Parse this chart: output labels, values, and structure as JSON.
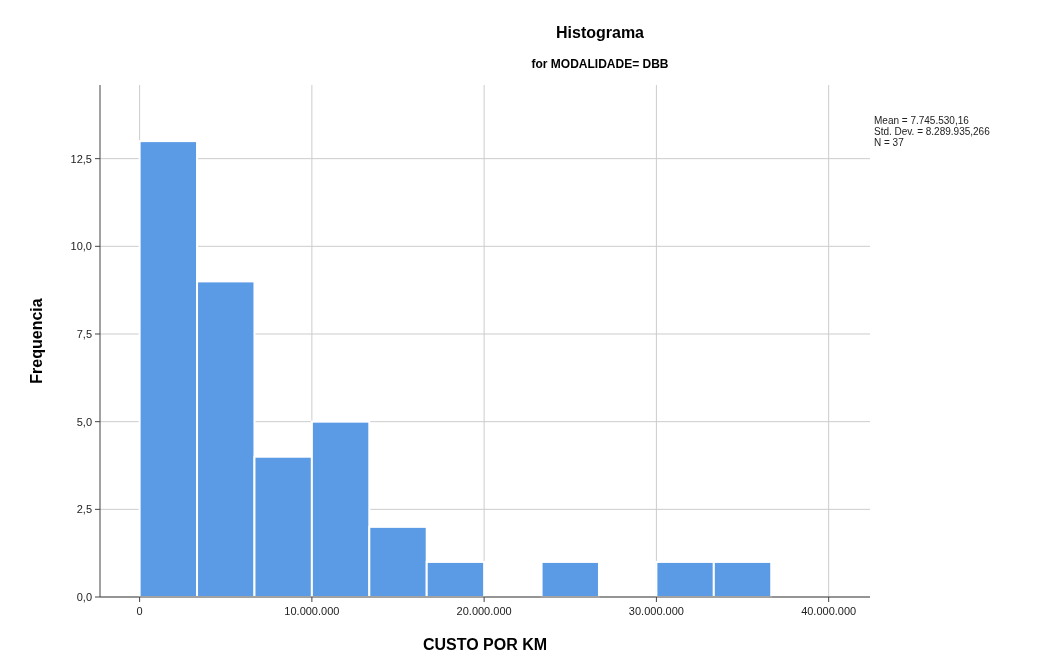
{
  "chart_data": {
    "type": "histogram",
    "title": "Histograma",
    "subtitle": "for MODALIDADE= DBB",
    "xlabel": "CUSTO POR KM",
    "ylabel": "Frequencia",
    "bins": [
      0,
      3333333,
      6666667,
      10000000,
      13333333,
      16666667,
      20000000,
      23333333,
      26666667,
      30000000,
      33333333,
      36666667
    ],
    "values": [
      13,
      9,
      4,
      5,
      2,
      1,
      0,
      1,
      0,
      1,
      1
    ],
    "color": "#5b9be6",
    "xlim": [
      -2300000,
      42400000
    ],
    "xticks": [
      {
        "value": 0,
        "label": "0"
      },
      {
        "value": 10000000,
        "label": "10.000.000"
      },
      {
        "value": 20000000,
        "label": "20.000.000"
      },
      {
        "value": 30000000,
        "label": "30.000.000"
      },
      {
        "value": 40000000,
        "label": "40.000.000"
      }
    ],
    "ylim": [
      0,
      14.6
    ],
    "yticks": [
      {
        "value": 0,
        "label": "0,0"
      },
      {
        "value": 2.5,
        "label": "2,5"
      },
      {
        "value": 5,
        "label": "5,0"
      },
      {
        "value": 7.5,
        "label": "7,5"
      },
      {
        "value": 10,
        "label": "10,0"
      },
      {
        "value": 12.5,
        "label": "12,5"
      }
    ],
    "grid": true,
    "annotations": [
      "Mean = 7.745.530,16",
      "Std. Dev. = 8.289.935,266",
      "N = 37"
    ]
  }
}
